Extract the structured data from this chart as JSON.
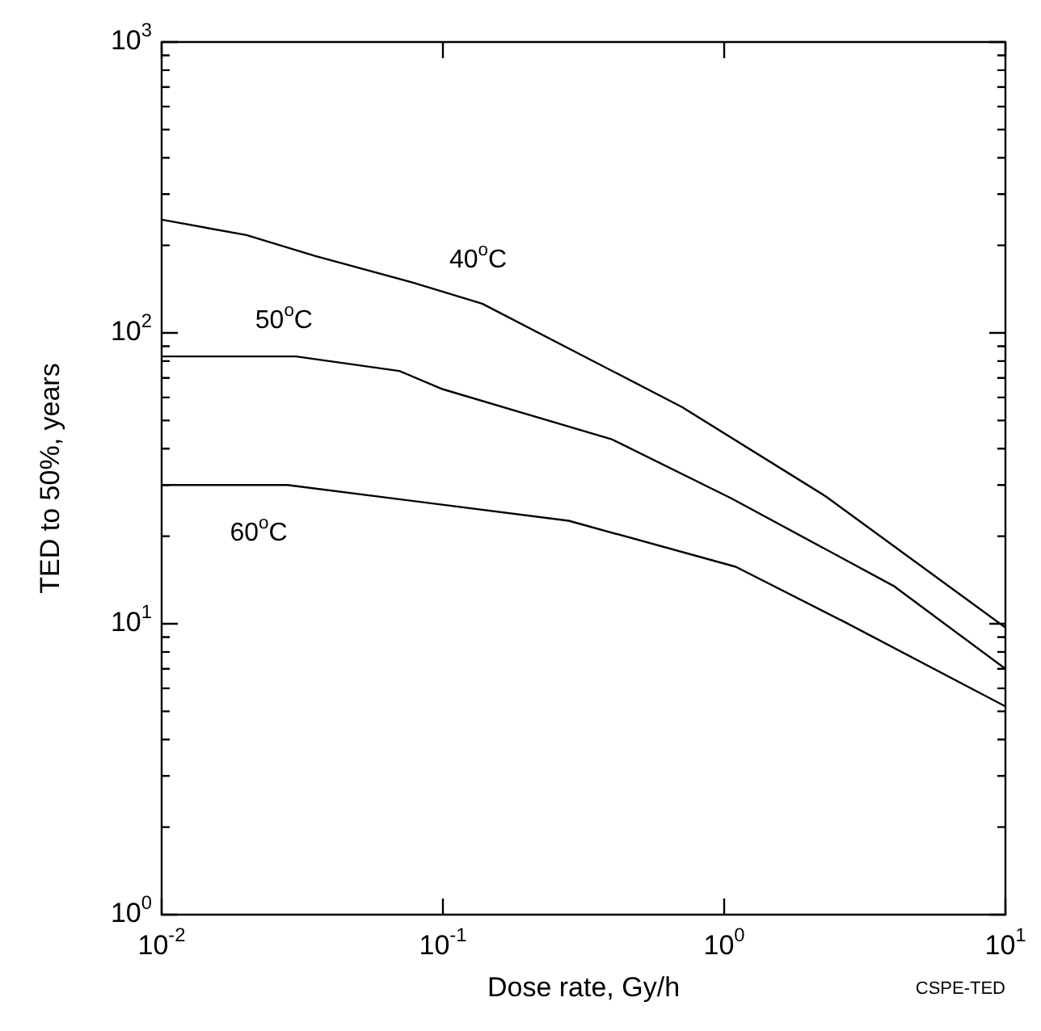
{
  "chart_data": {
    "type": "line",
    "xlabel": "Dose rate, Gy/h",
    "ylabel": "TED to 50%, years",
    "log": "xy",
    "grid": false,
    "legend": false,
    "marker": "none",
    "line_style": "solid",
    "xlim": [
      0.01,
      10
    ],
    "ylim": [
      1,
      1000
    ],
    "xticks": [
      {
        "value": 0.01,
        "label": "10$^{-2}$"
      },
      {
        "value": 0.1,
        "label": "10$^{-1}$"
      },
      {
        "value": 1,
        "label": "10$^{0}$"
      },
      {
        "value": 10,
        "label": "10$^{1}$"
      }
    ],
    "yticks": [
      {
        "value": 1,
        "label": "10$^{0}$"
      },
      {
        "value": 2,
        "label": null
      },
      {
        "value": 3,
        "label": null
      },
      {
        "value": 4,
        "label": null
      },
      {
        "value": 5,
        "label": null
      },
      {
        "value": 6,
        "label": null
      },
      {
        "value": 7,
        "label": null
      },
      {
        "value": 8,
        "label": null
      },
      {
        "value": 9,
        "label": null
      },
      {
        "value": 10,
        "label": "10$^{1}$"
      },
      {
        "value": 20,
        "label": null
      },
      {
        "value": 30,
        "label": null
      },
      {
        "value": 40,
        "label": null
      },
      {
        "value": 50,
        "label": null
      },
      {
        "value": 60,
        "label": null
      },
      {
        "value": 70,
        "label": null
      },
      {
        "value": 80,
        "label": null
      },
      {
        "value": 90,
        "label": null
      },
      {
        "value": 100,
        "label": "10$^{2}$"
      },
      {
        "value": 200,
        "label": null
      },
      {
        "value": 300,
        "label": null
      },
      {
        "value": 400,
        "label": null
      },
      {
        "value": 500,
        "label": null
      },
      {
        "value": 600,
        "label": null
      },
      {
        "value": 700,
        "label": null
      },
      {
        "value": 800,
        "label": null
      },
      {
        "value": 900,
        "label": null
      },
      {
        "value": 1000,
        "label": "10$^{3}$"
      }
    ],
    "series": [
      {
        "color": "#000000",
        "x": [
          0.01,
          0.02,
          0.035,
          0.078,
          0.138,
          0.71,
          2.3,
          10
        ],
        "values": [
          245,
          217,
          184,
          149,
          126,
          55.5,
          27.4,
          9.7
        ]
      },
      {
        "color": "#000000",
        "x": [
          0.01,
          0.03,
          0.07,
          0.1,
          0.4,
          1.06,
          4,
          10
        ],
        "values": [
          83,
          83,
          74,
          64,
          43,
          27,
          13.5,
          7
        ]
      },
      {
        "color": "#000000",
        "x": [
          0.01,
          0.028,
          0.28,
          1.1,
          2.7,
          10
        ],
        "values": [
          30,
          30,
          22.6,
          15.7,
          10.1,
          5.2
        ]
      }
    ],
    "annotations": [
      "40$^{o}$C",
      "50$^{o}$C",
      "60$^{o}$C",
      "CSPE-TED"
    ]
  }
}
